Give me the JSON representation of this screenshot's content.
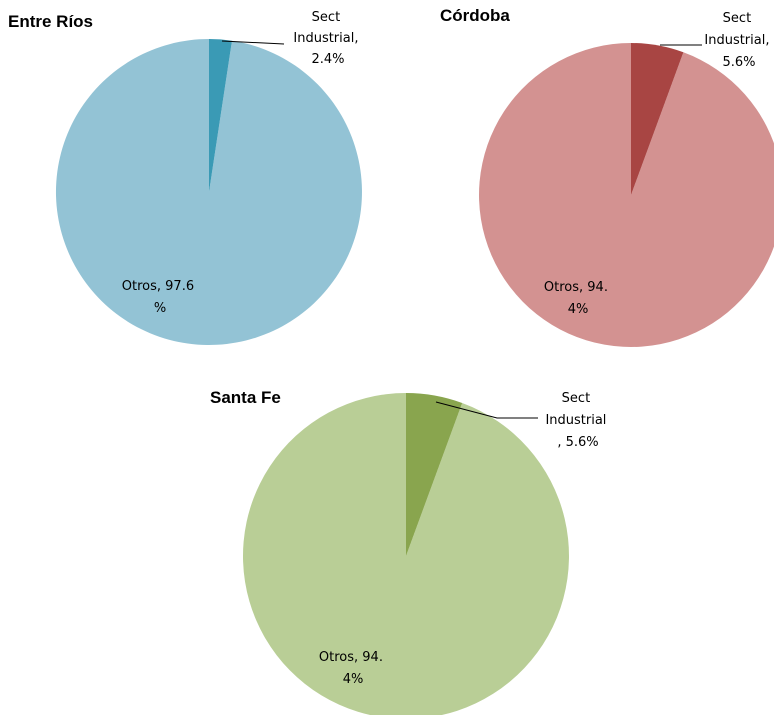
{
  "chart_data": [
    {
      "type": "pie",
      "title": "Entre Ríos",
      "slices": [
        {
          "name": "Sect Industrial",
          "value": 2.4,
          "color": "#3a9ab5",
          "label_lines": [
            "Sect",
            "Industrial,",
            "2.4%"
          ]
        },
        {
          "name": "Otros",
          "value": 97.6,
          "color": "#93c3d5",
          "label_lines": [
            "Otros, 97.6",
            "%"
          ]
        }
      ]
    },
    {
      "type": "pie",
      "title": "Córdoba",
      "slices": [
        {
          "name": "Sect Industrial",
          "value": 5.6,
          "color": "#a84543",
          "label_lines": [
            "Sect",
            "Industrial,",
            "5.6%"
          ]
        },
        {
          "name": "Otros",
          "value": 94.4,
          "color": "#d39291",
          "label_lines": [
            "Otros, 94.",
            "4%"
          ]
        }
      ]
    },
    {
      "type": "pie",
      "title": "Santa Fe",
      "slices": [
        {
          "name": "Sect Industrial",
          "value": 5.6,
          "color": "#89a54e",
          "label_lines": [
            "Sect",
            "Industrial",
            ", 5.6%"
          ]
        },
        {
          "name": "Otros",
          "value": 94.4,
          "color": "#b9ce96",
          "label_lines": [
            "Otros, 94.",
            "4%"
          ]
        }
      ]
    }
  ]
}
